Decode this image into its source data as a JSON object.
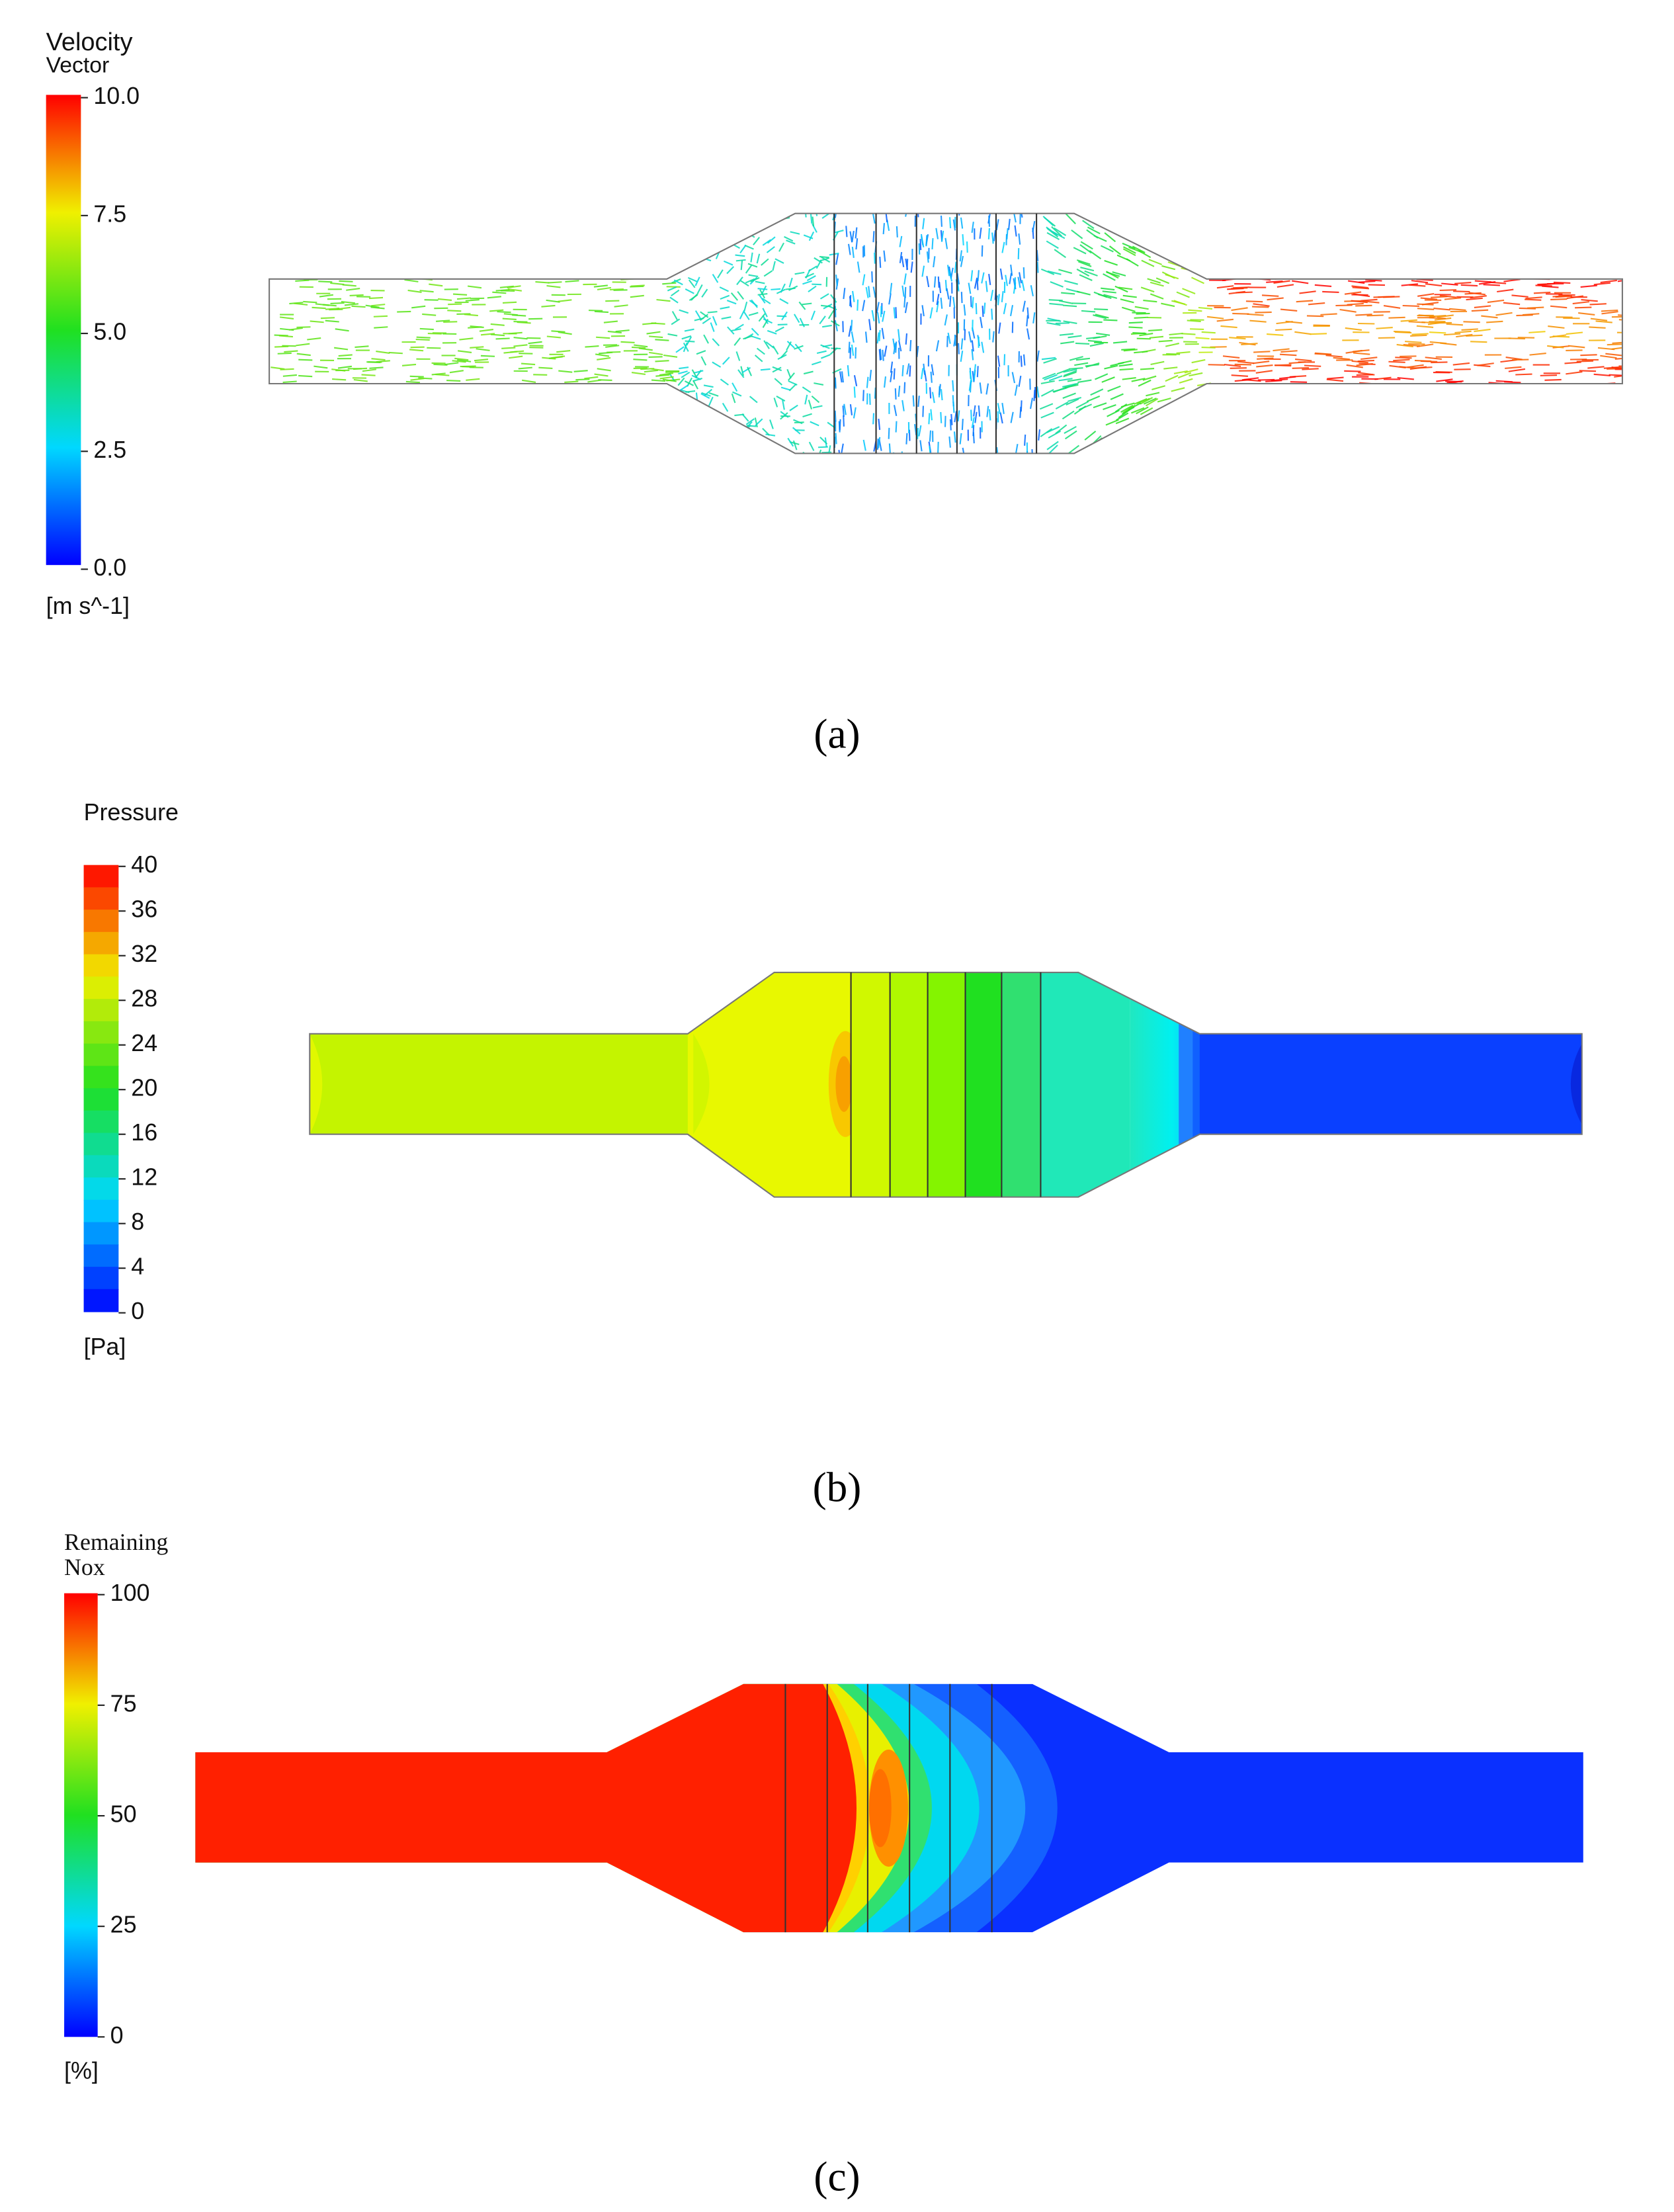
{
  "panels": [
    {
      "legend_title": [
        "Velocity",
        "Vector"
      ],
      "ticks": [
        "10.0",
        "7.5",
        "5.0",
        "2.5",
        "0.0"
      ],
      "unit": "[m s^-1]",
      "caption": "(a)"
    },
    {
      "legend_title": [
        "Pressure"
      ],
      "ticks": [
        "40",
        "36",
        "32",
        "28",
        "24",
        "20",
        "16",
        "12",
        "8",
        "4",
        "0"
      ],
      "unit": "[Pa]",
      "caption": "(b)"
    },
    {
      "legend_title": [
        "Remaining",
        "Nox"
      ],
      "ticks": [
        "100",
        "75",
        "50",
        "25",
        "0"
      ],
      "unit": "[%]",
      "caption": "(c)"
    }
  ]
}
